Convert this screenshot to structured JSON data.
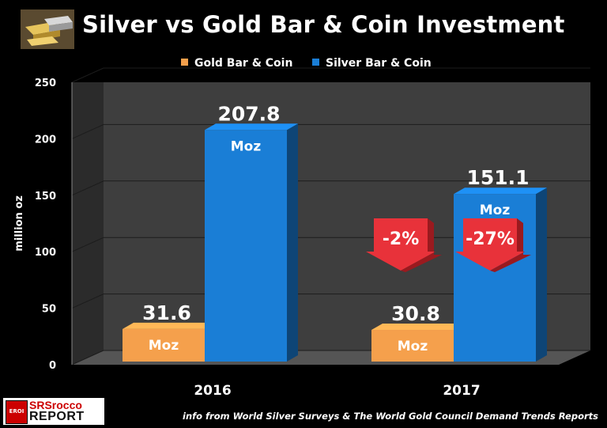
{
  "title": "Silver vs Gold Bar & Coin Investment",
  "footer": "info from World Silver Surveys & The World Gold Council Demand Trends Reports",
  "brand": {
    "badge": "EROI",
    "line1": "SRSrocco",
    "line2": "REPORT"
  },
  "colors": {
    "gold": "#f5a04c",
    "silver": "#1a7ed6",
    "arrow": "#e8323a"
  },
  "chart_data": {
    "type": "bar",
    "categories": [
      "2016",
      "2017"
    ],
    "series": [
      {
        "name": "Gold Bar & Coin",
        "values": [
          31.6,
          30.8
        ],
        "labels": [
          "31.6",
          "30.8"
        ],
        "unit": "Moz"
      },
      {
        "name": "Silver Bar & Coin",
        "values": [
          207.8,
          151.1
        ],
        "labels": [
          "207.8",
          "151.1"
        ],
        "unit": "Moz"
      }
    ],
    "ylabel": "million oz",
    "ylim": [
      0,
      250
    ],
    "yticks": [
      0,
      50,
      100,
      150,
      200,
      250
    ],
    "grid": true,
    "legend": "top-center",
    "annotations": [
      {
        "text": "-2%",
        "series": 0,
        "category": 1
      },
      {
        "text": "-27%",
        "series": 1,
        "category": 1
      }
    ]
  }
}
